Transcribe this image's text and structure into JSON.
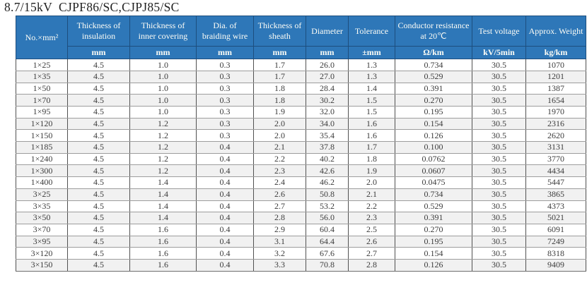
{
  "title": "8.7/15kV  CJPF86/SC,CJPJ85/SC",
  "colors": {
    "header_background": "#2e77b8",
    "header_border": "#1d4e7e",
    "header_text": "#fdfdf6",
    "row_stripe": "#f1f1f1",
    "body_text": "#3c3c3c"
  },
  "table": {
    "corner_header": "No.×mm²",
    "columns": [
      {
        "label": "Thickness of insulation",
        "unit": "mm"
      },
      {
        "label": "Thickness of inner covering",
        "unit": "mm"
      },
      {
        "label": "Dia. of braiding wire",
        "unit": "mm"
      },
      {
        "label": "Thickness of sheath",
        "unit": "mm"
      },
      {
        "label": "Diameter",
        "unit": "mm"
      },
      {
        "label": "Tolerance",
        "unit": "±mm"
      },
      {
        "label": "Conductor resistance at 20℃",
        "unit": "Ω/km"
      },
      {
        "label": "Test voltage",
        "unit": "kV/5min"
      },
      {
        "label": "Approx. Weight",
        "unit": "kg/km"
      }
    ],
    "rows": [
      [
        "1×25",
        "4.5",
        "1.0",
        "0.3",
        "1.7",
        "26.0",
        "1.3",
        "0.734",
        "30.5",
        "1070"
      ],
      [
        "1×35",
        "4.5",
        "1.0",
        "0.3",
        "1.7",
        "27.0",
        "1.3",
        "0.529",
        "30.5",
        "1201"
      ],
      [
        "1×50",
        "4.5",
        "1.0",
        "0.3",
        "1.8",
        "28.4",
        "1.4",
        "0.391",
        "30.5",
        "1387"
      ],
      [
        "1×70",
        "4.5",
        "1.0",
        "0.3",
        "1.8",
        "30.2",
        "1.5",
        "0.270",
        "30.5",
        "1654"
      ],
      [
        "1×95",
        "4.5",
        "1.0",
        "0.3",
        "1.9",
        "32.0",
        "1.5",
        "0.195",
        "30.5",
        "1970"
      ],
      [
        "1×120",
        "4.5",
        "1.2",
        "0.3",
        "2.0",
        "34.0",
        "1.6",
        "0.154",
        "30.5",
        "2316"
      ],
      [
        "1×150",
        "4.5",
        "1.2",
        "0.3",
        "2.0",
        "35.4",
        "1.6",
        "0.126",
        "30.5",
        "2620"
      ],
      [
        "1×185",
        "4.5",
        "1.2",
        "0.4",
        "2.1",
        "37.8",
        "1.7",
        "0.100",
        "30.5",
        "3131"
      ],
      [
        "1×240",
        "4.5",
        "1.2",
        "0.4",
        "2.2",
        "40.2",
        "1.8",
        "0.0762",
        "30.5",
        "3770"
      ],
      [
        "1×300",
        "4.5",
        "1.2",
        "0.4",
        "2.3",
        "42.6",
        "1.9",
        "0.0607",
        "30.5",
        "4434"
      ],
      [
        "1×400",
        "4.5",
        "1.4",
        "0.4",
        "2.4",
        "46.2",
        "2.0",
        "0.0475",
        "30.5",
        "5447"
      ],
      [
        "3×25",
        "4.5",
        "1.4",
        "0.4",
        "2.6",
        "50.8",
        "2.1",
        "0.734",
        "30.5",
        "3865"
      ],
      [
        "3×35",
        "4.5",
        "1.4",
        "0.4",
        "2.7",
        "53.2",
        "2.2",
        "0.529",
        "30.5",
        "4373"
      ],
      [
        "3×50",
        "4.5",
        "1.4",
        "0.4",
        "2.8",
        "56.0",
        "2.3",
        "0.391",
        "30.5",
        "5021"
      ],
      [
        "3×70",
        "4.5",
        "1.6",
        "0.4",
        "2.9",
        "60.4",
        "2.5",
        "0.270",
        "30.5",
        "6091"
      ],
      [
        "3×95",
        "4.5",
        "1.6",
        "0.4",
        "3.1",
        "64.4",
        "2.6",
        "0.195",
        "30.5",
        "7249"
      ],
      [
        "3×120",
        "4.5",
        "1.6",
        "0.4",
        "3.2",
        "67.6",
        "2.7",
        "0.154",
        "30.5",
        "8318"
      ],
      [
        "3×150",
        "4.5",
        "1.6",
        "0.4",
        "3.3",
        "70.8",
        "2.8",
        "0.126",
        "30.5",
        "9409"
      ]
    ]
  }
}
